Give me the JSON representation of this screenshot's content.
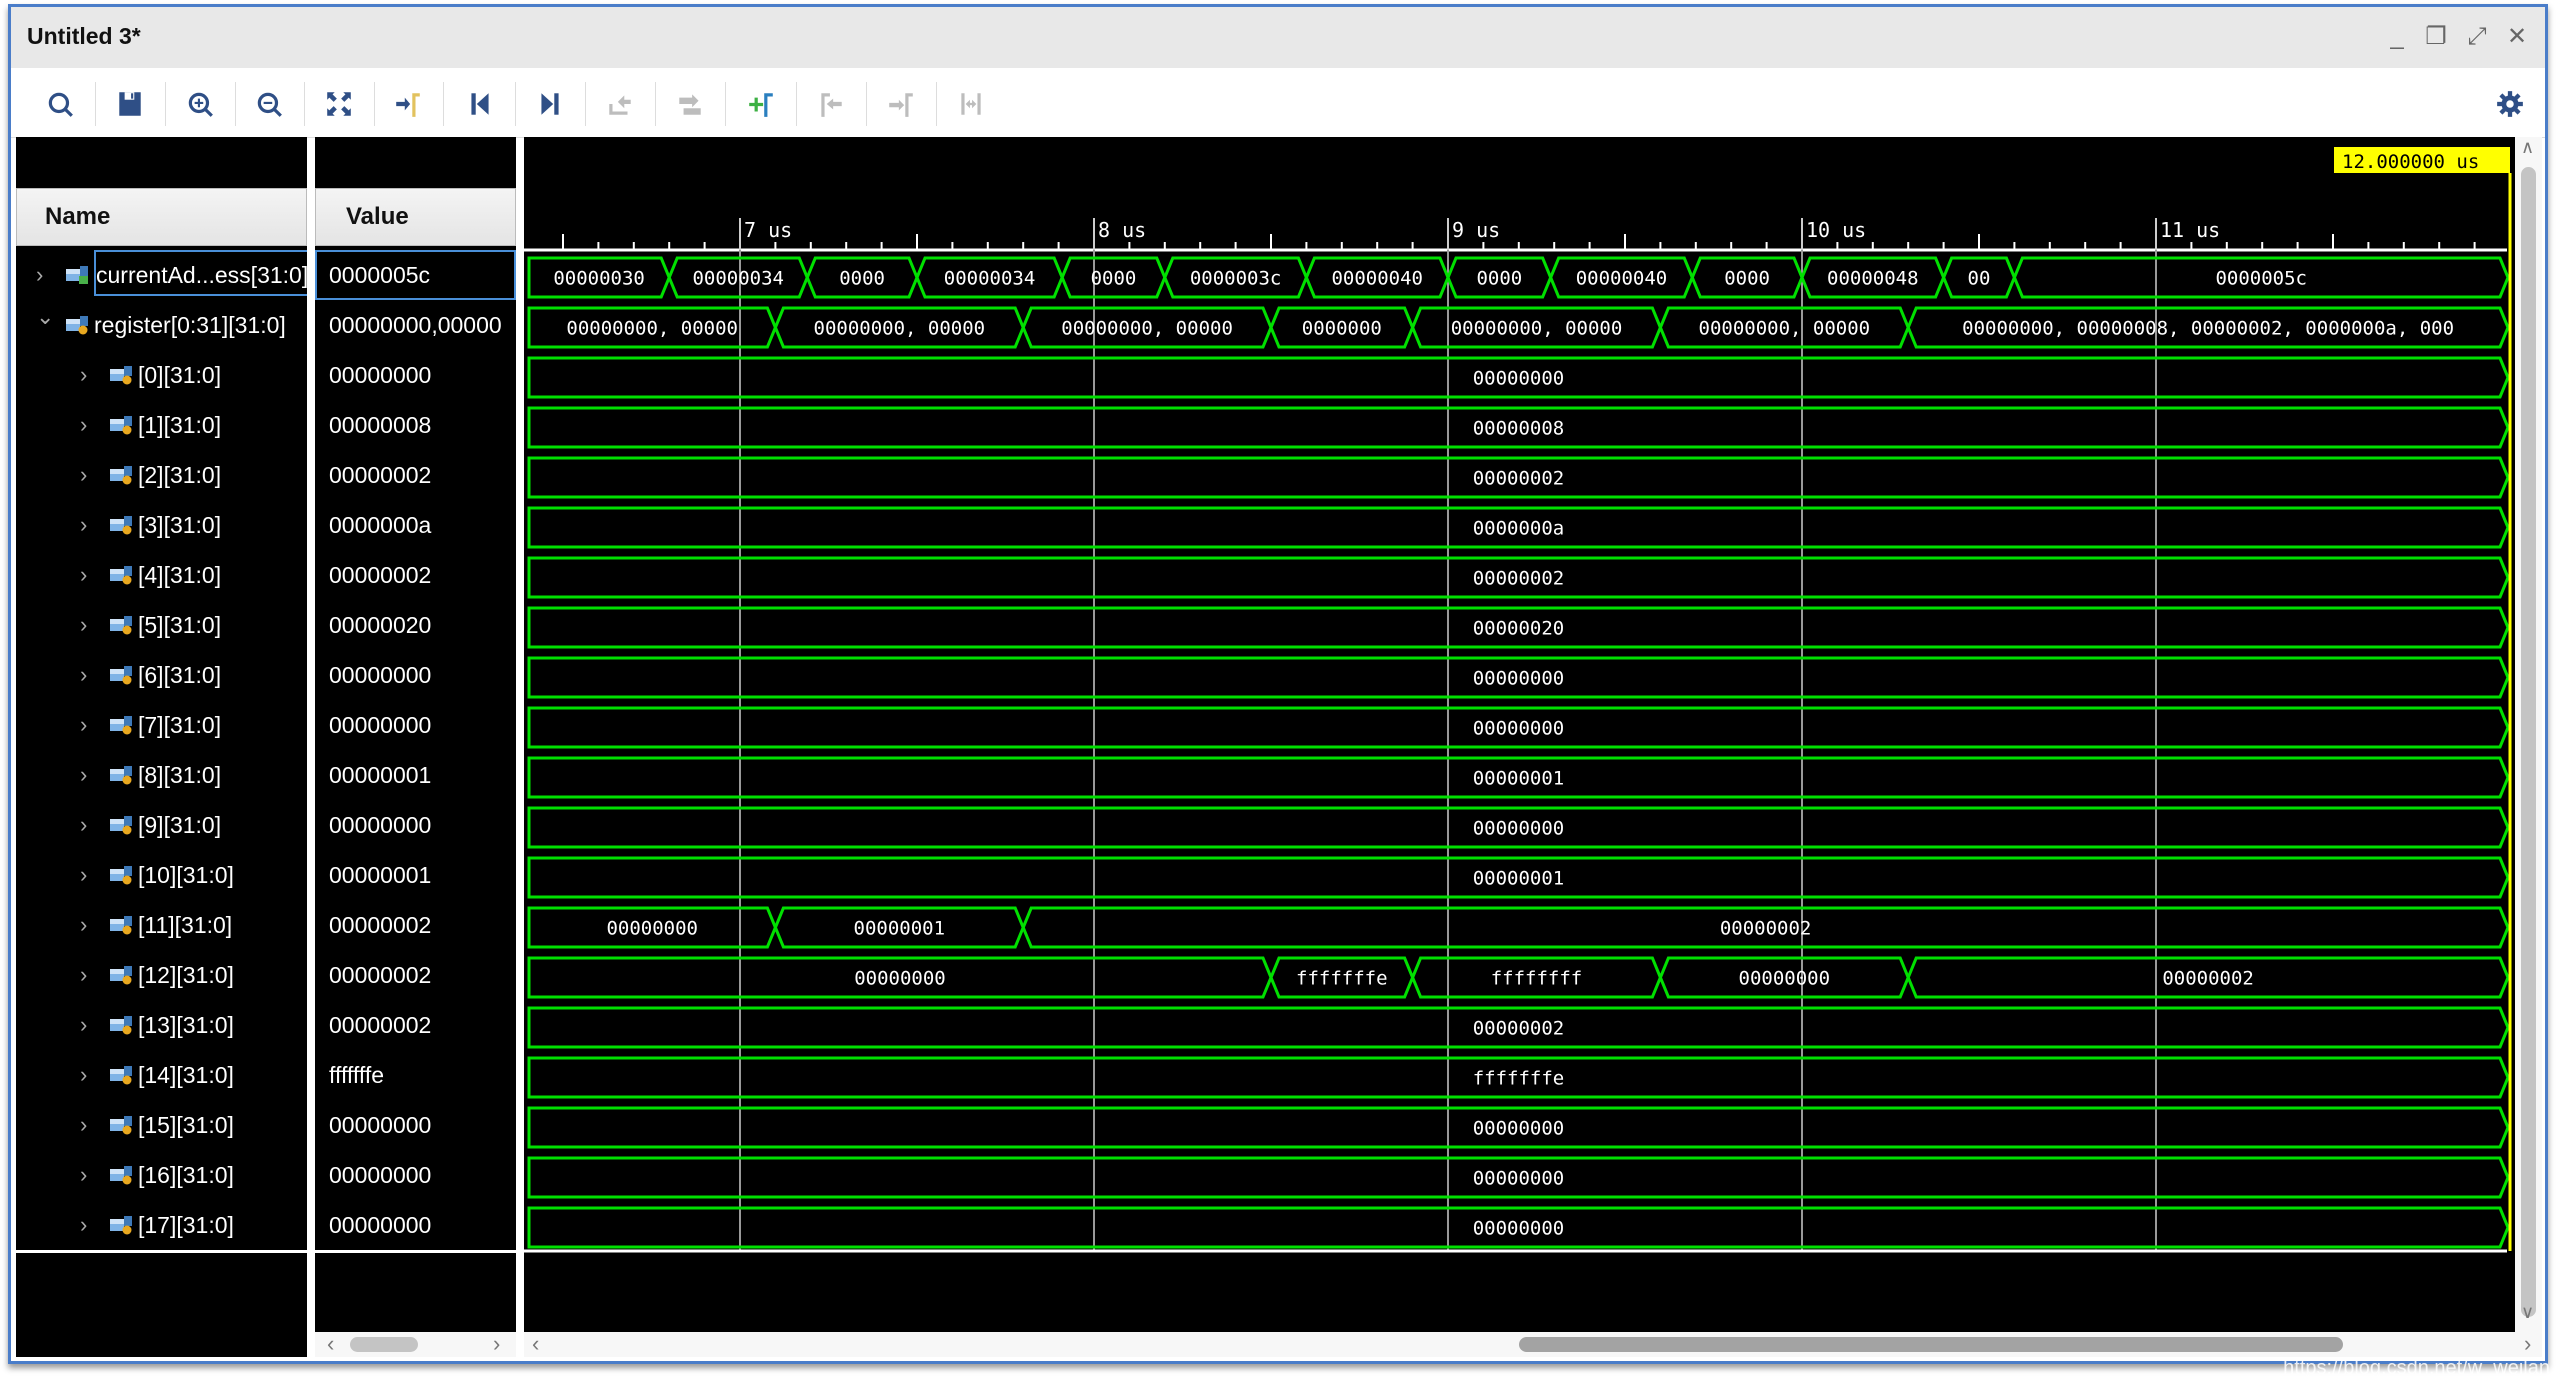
{
  "window": {
    "title": "Untitled 3*"
  },
  "window_controls": [
    {
      "name": "minimize-button",
      "glyph": "_"
    },
    {
      "name": "restore-button",
      "glyph": "❐"
    },
    {
      "name": "maximize-button",
      "glyph": "⤢"
    },
    {
      "name": "close-button",
      "glyph": "✕"
    }
  ],
  "toolbar": {
    "items": [
      {
        "icon": "search-icon",
        "enabled": true
      },
      {
        "icon": "save-icon",
        "enabled": true
      },
      {
        "icon": "zoom-in-icon",
        "enabled": true
      },
      {
        "icon": "zoom-out-icon",
        "enabled": true
      },
      {
        "icon": "zoom-fit-icon",
        "enabled": true
      },
      {
        "icon": "go-to-cursor-icon",
        "enabled": true
      },
      {
        "icon": "go-to-time-zero-icon",
        "enabled": true
      },
      {
        "icon": "go-to-last-time-icon",
        "enabled": true
      },
      {
        "icon": "previous-transition-icon",
        "enabled": false
      },
      {
        "icon": "next-transition-icon",
        "enabled": false
      },
      {
        "icon": "add-marker-icon",
        "enabled": true
      },
      {
        "icon": "previous-marker-icon",
        "enabled": false
      },
      {
        "icon": "next-marker-icon",
        "enabled": false
      },
      {
        "icon": "swap-cursors-icon",
        "enabled": false
      }
    ],
    "settings_icon": "gear-icon"
  },
  "columns": {
    "name": "Name",
    "value": "Value"
  },
  "colors": {
    "wave": "#00e000",
    "cursor": "#ffff00",
    "grid": "#9a9a9a",
    "accent": "#4a7dc9"
  },
  "timeline": {
    "unit": "us",
    "view_start": 6.4,
    "view_end": 12.0,
    "labels": [
      "7 us",
      "8 us",
      "9 us",
      "10 us",
      "11 us"
    ],
    "label_times": [
      7,
      8,
      9,
      10,
      11
    ],
    "cursor_time": 12.0,
    "cursor_label": "12.000000 us"
  },
  "signals": [
    {
      "name": "currentAd...ess[31:0]",
      "value": "0000005c",
      "level": 0,
      "expander": "collapsed",
      "icon": "bus-output-icon",
      "selected": true,
      "transitions": [
        6.8,
        7.19,
        7.5,
        7.91,
        8.2,
        8.6,
        9.0,
        9.29,
        9.69,
        10.0,
        10.4,
        10.6
      ],
      "values": [
        "00000030",
        "00000034",
        "0000",
        "00000034",
        "0000",
        "0000003c",
        "00000040",
        "0000",
        "00000040",
        "0000",
        "00000048",
        "00",
        "0000005c"
      ]
    },
    {
      "name": "register[0:31][31:0]",
      "value": "00000000,00000",
      "level": 0,
      "expander": "expanded",
      "icon": "bus-array-icon",
      "transitions": [
        7.1,
        7.8,
        8.5,
        8.9,
        9.6,
        10.3
      ],
      "values": [
        "00000000, 00000",
        "00000000, 00000",
        "00000000, 00000",
        "0000000",
        "00000000, 00000",
        "00000000, 00000",
        "00000000, 00000008, 00000002, 0000000a, 000"
      ]
    },
    {
      "name": "[0][31:0]",
      "value": "00000000",
      "level": 1,
      "expander": "collapsed",
      "icon": "bus-array-icon",
      "transitions": [],
      "values": [
        "00000000"
      ]
    },
    {
      "name": "[1][31:0]",
      "value": "00000008",
      "level": 1,
      "expander": "collapsed",
      "icon": "bus-array-icon",
      "transitions": [],
      "values": [
        "00000008"
      ]
    },
    {
      "name": "[2][31:0]",
      "value": "00000002",
      "level": 1,
      "expander": "collapsed",
      "icon": "bus-array-icon",
      "transitions": [],
      "values": [
        "00000002"
      ]
    },
    {
      "name": "[3][31:0]",
      "value": "0000000a",
      "level": 1,
      "expander": "collapsed",
      "icon": "bus-array-icon",
      "transitions": [],
      "values": [
        "0000000a"
      ]
    },
    {
      "name": "[4][31:0]",
      "value": "00000002",
      "level": 1,
      "expander": "collapsed",
      "icon": "bus-array-icon",
      "transitions": [],
      "values": [
        "00000002"
      ]
    },
    {
      "name": "[5][31:0]",
      "value": "00000020",
      "level": 1,
      "expander": "collapsed",
      "icon": "bus-array-icon",
      "transitions": [],
      "values": [
        "00000020"
      ]
    },
    {
      "name": "[6][31:0]",
      "value": "00000000",
      "level": 1,
      "expander": "collapsed",
      "icon": "bus-array-icon",
      "transitions": [],
      "values": [
        "00000000"
      ]
    },
    {
      "name": "[7][31:0]",
      "value": "00000000",
      "level": 1,
      "expander": "collapsed",
      "icon": "bus-array-icon",
      "transitions": [],
      "values": [
        "00000000"
      ]
    },
    {
      "name": "[8][31:0]",
      "value": "00000001",
      "level": 1,
      "expander": "collapsed",
      "icon": "bus-array-icon",
      "transitions": [],
      "values": [
        "00000001"
      ]
    },
    {
      "name": "[9][31:0]",
      "value": "00000000",
      "level": 1,
      "expander": "collapsed",
      "icon": "bus-array-icon",
      "transitions": [],
      "values": [
        "00000000"
      ]
    },
    {
      "name": "[10][31:0]",
      "value": "00000001",
      "level": 1,
      "expander": "collapsed",
      "icon": "bus-array-icon",
      "transitions": [],
      "values": [
        "00000001"
      ]
    },
    {
      "name": "[11][31:0]",
      "value": "00000002",
      "level": 1,
      "expander": "collapsed",
      "icon": "bus-array-icon",
      "transitions": [
        7.1,
        7.8
      ],
      "values": [
        "00000000",
        "00000001",
        "00000002"
      ]
    },
    {
      "name": "[12][31:0]",
      "value": "00000002",
      "level": 1,
      "expander": "collapsed",
      "icon": "bus-array-icon",
      "transitions": [
        8.5,
        8.9,
        9.6,
        10.3
      ],
      "values": [
        "00000000",
        "fffffffe",
        "ffffffff",
        "00000000",
        "00000002"
      ]
    },
    {
      "name": "[13][31:0]",
      "value": "00000002",
      "level": 1,
      "expander": "collapsed",
      "icon": "bus-array-icon",
      "transitions": [],
      "values": [
        "00000002"
      ]
    },
    {
      "name": "[14][31:0]",
      "value": "fffffffe",
      "level": 1,
      "expander": "collapsed",
      "icon": "bus-array-icon",
      "transitions": [],
      "values": [
        "fffffffe"
      ]
    },
    {
      "name": "[15][31:0]",
      "value": "00000000",
      "level": 1,
      "expander": "collapsed",
      "icon": "bus-array-icon",
      "transitions": [],
      "values": [
        "00000000"
      ]
    },
    {
      "name": "[16][31:0]",
      "value": "00000000",
      "level": 1,
      "expander": "collapsed",
      "icon": "bus-array-icon",
      "transitions": [],
      "values": [
        "00000000"
      ]
    },
    {
      "name": "[17][31:0]",
      "value": "00000000",
      "level": 1,
      "expander": "collapsed",
      "icon": "bus-array-icon",
      "transitions": [],
      "values": [
        "00000000"
      ]
    }
  ],
  "scrollbars": {
    "horizontal_position": 0.75,
    "vertical_position": 0.0
  },
  "watermark": "https://blog.csdn.net/w_weilan"
}
